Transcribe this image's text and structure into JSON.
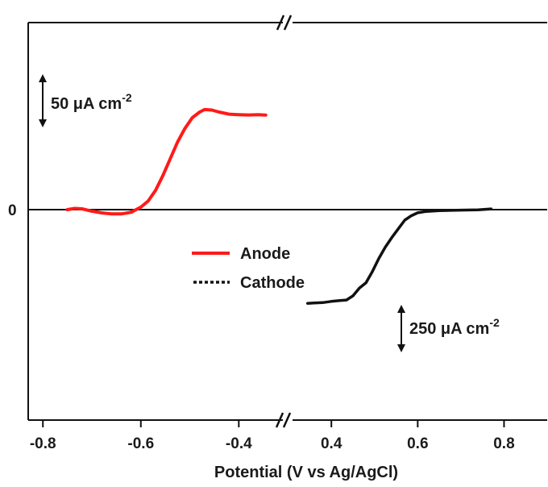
{
  "chart_data": {
    "type": "line",
    "title": "",
    "xlabel": "Potential (V vs Ag/AgCl)",
    "ylabel": "",
    "y_zero_label": "0",
    "broken_x_axis": true,
    "x_segments": [
      {
        "xlim": [
          -0.83,
          -0.31
        ],
        "ticks": [
          -0.8,
          -0.6,
          -0.4
        ],
        "tick_labels": [
          "-0.8",
          "-0.6",
          "-0.4"
        ]
      },
      {
        "xlim": [
          0.31,
          0.9
        ],
        "ticks": [
          0.4,
          0.6,
          0.8
        ],
        "tick_labels": [
          "0.4",
          "0.6",
          "0.8"
        ]
      }
    ],
    "series": [
      {
        "name": "Anode",
        "color": "#ff1a1a",
        "line_style": "solid",
        "segment": 0,
        "scale_text": "50 μA cm",
        "scale_exp": "-2",
        "scale_value": 50,
        "unit": "μA cm-2",
        "points": [
          [
            -0.75,
            0.0
          ],
          [
            -0.735,
            1.2
          ],
          [
            -0.72,
            0.8
          ],
          [
            -0.7,
            -1.5
          ],
          [
            -0.68,
            -3.2
          ],
          [
            -0.66,
            -4.1
          ],
          [
            -0.64,
            -4.2
          ],
          [
            -0.62,
            -2.6
          ],
          [
            -0.6,
            2.5
          ],
          [
            -0.585,
            8.5
          ],
          [
            -0.57,
            19.0
          ],
          [
            -0.555,
            33.5
          ],
          [
            -0.54,
            50.0
          ],
          [
            -0.525,
            66.5
          ],
          [
            -0.51,
            80.0
          ],
          [
            -0.495,
            90.5
          ],
          [
            -0.48,
            96.0
          ],
          [
            -0.47,
            98.5
          ],
          [
            -0.455,
            98.0
          ],
          [
            -0.44,
            96.0
          ],
          [
            -0.42,
            94.0
          ],
          [
            -0.4,
            93.5
          ],
          [
            -0.38,
            93.2
          ],
          [
            -0.36,
            93.5
          ],
          [
            -0.345,
            93.0
          ]
        ]
      },
      {
        "name": "Cathode",
        "color": "#111111",
        "line_style": "dotted",
        "segment": 1,
        "scale_text": "250 μA cm",
        "scale_exp": "-2",
        "scale_value": 250,
        "unit": "μA cm-2",
        "points": [
          [
            0.345,
            -538
          ],
          [
            0.36,
            -536
          ],
          [
            0.38,
            -534
          ],
          [
            0.4,
            -527
          ],
          [
            0.42,
            -522
          ],
          [
            0.435,
            -519
          ],
          [
            0.45,
            -495
          ],
          [
            0.465,
            -450
          ],
          [
            0.48,
            -420
          ],
          [
            0.495,
            -355
          ],
          [
            0.51,
            -280
          ],
          [
            0.525,
            -215
          ],
          [
            0.54,
            -160
          ],
          [
            0.555,
            -110
          ],
          [
            0.57,
            -60
          ],
          [
            0.585,
            -35
          ],
          [
            0.6,
            -18
          ],
          [
            0.62,
            -10
          ],
          [
            0.65,
            -6
          ],
          [
            0.7,
            -3
          ],
          [
            0.74,
            -1
          ],
          [
            0.77,
            4
          ]
        ]
      }
    ],
    "legend": {
      "placement": "center",
      "entries": [
        {
          "label": "Anode",
          "color": "#ff1a1a",
          "line_style": "solid"
        },
        {
          "label": "Cathode",
          "color": "#111111",
          "line_style": "dotted"
        }
      ]
    },
    "grid": false
  }
}
